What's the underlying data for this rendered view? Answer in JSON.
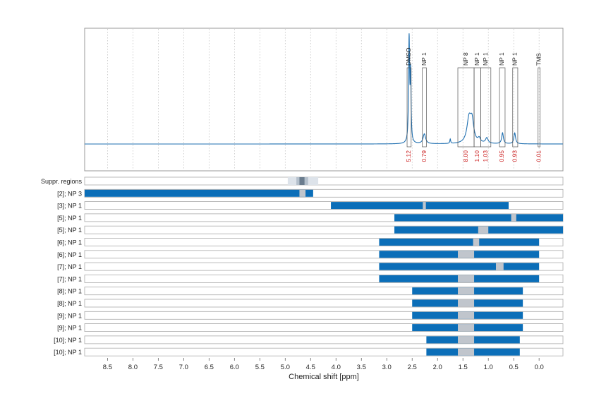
{
  "chart_data": {
    "type": "line",
    "xlabel": "Chemical shift [ppm]",
    "xlim": [
      8.95,
      -0.47
    ],
    "xticks": [
      8.5,
      8.0,
      7.5,
      7.0,
      6.5,
      6.0,
      5.5,
      5.0,
      4.5,
      4.0,
      3.5,
      3.0,
      2.5,
      2.0,
      1.5,
      1.0,
      0.5,
      0.0
    ],
    "x_reversed": true,
    "grid": "vertical dotted",
    "colors": {
      "spectrum": "#1f6fb0",
      "bar": "#0b6eb8",
      "gap": "#c0c5cc",
      "integral_text": "#cc2222",
      "suppr_light": "#dde3ea",
      "suppr_mid": "#b4c0cc",
      "suppr_dark": "#6a7c8e"
    },
    "spectrum": {
      "baseline_label": "",
      "peaks": [
        {
          "x": 2.56,
          "h": 0.95,
          "w": 0.012
        },
        {
          "x": 2.53,
          "h": 0.6,
          "w": 0.01
        },
        {
          "x": 2.26,
          "h": 0.09,
          "w": 0.03
        },
        {
          "x": 1.75,
          "h": 0.04,
          "w": 0.01
        },
        {
          "x": 1.38,
          "h": 0.22,
          "w": 0.05
        },
        {
          "x": 1.32,
          "h": 0.18,
          "w": 0.04
        },
        {
          "x": 1.18,
          "h": 0.04,
          "w": 0.03
        },
        {
          "x": 1.03,
          "h": 0.05,
          "w": 0.03
        },
        {
          "x": 0.72,
          "h": 0.1,
          "w": 0.02
        },
        {
          "x": 0.48,
          "h": 0.1,
          "w": 0.02
        }
      ]
    },
    "integral_regions": [
      {
        "label": "DMSO",
        "x1": 2.6,
        "x2": 2.52,
        "integral": "5.12"
      },
      {
        "label": "NP 1",
        "x1": 2.3,
        "x2": 2.22,
        "integral": "0.79"
      },
      {
        "label": "NP 8",
        "x1": 1.6,
        "x2": 1.28,
        "integral": "8.00"
      },
      {
        "label": "NP 1",
        "x1": 1.28,
        "x2": 1.15,
        "integral": "1.10"
      },
      {
        "label": "NP 1",
        "x1": 1.15,
        "x2": 0.95,
        "integral": "1.03"
      },
      {
        "label": "NP 1",
        "x1": 0.78,
        "x2": 0.67,
        "integral": "0.95"
      },
      {
        "label": "NP 1",
        "x1": 0.52,
        "x2": 0.42,
        "integral": "0.93"
      },
      {
        "label": "TMS",
        "x1": 0.02,
        "x2": -0.02,
        "integral": "0.01"
      }
    ],
    "suppr_regions": {
      "label": "Suppr. regions",
      "light": [
        4.95,
        4.35
      ],
      "mid": [
        4.78,
        4.55
      ],
      "dark": [
        4.72,
        4.62
      ]
    },
    "rows": [
      {
        "label": "[2]; NP 3",
        "range": [
          8.95,
          4.45
        ],
        "gaps": [
          [
            4.72,
            4.6
          ]
        ]
      },
      {
        "label": "[3]; NP 1",
        "range": [
          4.1,
          0.6
        ],
        "gaps": [
          [
            2.29,
            2.23
          ]
        ]
      },
      {
        "label": "[5]; NP 1",
        "range": [
          2.85,
          -0.47
        ],
        "gaps": [
          [
            0.55,
            0.45
          ]
        ]
      },
      {
        "label": "[5]; NP 1",
        "range": [
          2.85,
          -0.47
        ],
        "gaps": [
          [
            1.2,
            1.0
          ]
        ]
      },
      {
        "label": "[6]; NP 1",
        "range": [
          3.15,
          0.0
        ],
        "gaps": [
          [
            1.3,
            1.18
          ]
        ]
      },
      {
        "label": "[6]; NP 1",
        "range": [
          3.15,
          0.0
        ],
        "gaps": [
          [
            1.6,
            1.28
          ]
        ]
      },
      {
        "label": "[7]; NP 1",
        "range": [
          3.15,
          0.0
        ],
        "gaps": [
          [
            0.85,
            0.7
          ]
        ]
      },
      {
        "label": "[7]; NP 1",
        "range": [
          3.15,
          0.0
        ],
        "gaps": [
          [
            1.6,
            1.28
          ]
        ]
      },
      {
        "label": "[8]; NP 1",
        "range": [
          2.5,
          0.32
        ],
        "gaps": [
          [
            1.6,
            1.28
          ]
        ]
      },
      {
        "label": "[8]; NP 1",
        "range": [
          2.5,
          0.32
        ],
        "gaps": [
          [
            1.6,
            1.28
          ]
        ]
      },
      {
        "label": "[9]; NP 1",
        "range": [
          2.5,
          0.32
        ],
        "gaps": [
          [
            1.6,
            1.28
          ]
        ]
      },
      {
        "label": "[9]; NP 1",
        "range": [
          2.5,
          0.32
        ],
        "gaps": [
          [
            1.6,
            1.28
          ]
        ]
      },
      {
        "label": "[10]; NP 1",
        "range": [
          2.22,
          0.38
        ],
        "gaps": [
          [
            1.6,
            1.28
          ]
        ]
      },
      {
        "label": "[10]; NP 1",
        "range": [
          2.22,
          0.38
        ],
        "gaps": [
          [
            1.6,
            1.28
          ]
        ]
      }
    ]
  }
}
